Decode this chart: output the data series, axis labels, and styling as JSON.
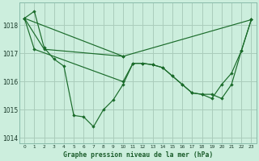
{
  "title": "Graphe pression niveau de la mer (hPa)",
  "background_color": "#cceedd",
  "grid_color": "#aaccbb",
  "line_color": "#1a6b2a",
  "marker_color": "#1a6b2a",
  "xlim": [
    -0.5,
    23.5
  ],
  "ylim": [
    1013.8,
    1018.8
  ],
  "yticks": [
    1014,
    1015,
    1016,
    1017,
    1018
  ],
  "xticks": [
    0,
    1,
    2,
    3,
    4,
    5,
    6,
    7,
    8,
    9,
    10,
    11,
    12,
    13,
    14,
    15,
    16,
    17,
    18,
    19,
    20,
    21,
    22,
    23
  ],
  "series0_x": [
    0,
    1,
    2,
    3,
    4,
    5,
    6,
    7,
    8,
    9,
    10,
    11,
    12,
    13,
    14,
    15,
    16,
    17,
    18,
    19,
    20,
    21,
    22,
    23
  ],
  "series0_y": [
    1018.25,
    1018.5,
    1017.2,
    1016.8,
    1016.55,
    1014.8,
    1014.75,
    1014.4,
    1015.0,
    1015.35,
    1015.9,
    1016.65,
    1016.65,
    1016.6,
    1016.5,
    1016.2,
    1015.9,
    1015.6,
    1015.55,
    1015.55,
    1015.4,
    1015.9,
    1017.1,
    1018.2
  ],
  "series1_x": [
    0,
    1,
    10,
    11,
    12,
    13,
    14,
    15,
    16,
    17,
    18,
    19,
    20,
    21,
    22,
    23
  ],
  "series1_y": [
    1018.25,
    1017.15,
    1016.0,
    1016.65,
    1016.65,
    1016.6,
    1016.5,
    1016.2,
    1015.9,
    1015.6,
    1015.55,
    1015.4,
    1015.9,
    1016.3,
    1017.1,
    1018.2
  ],
  "series2_x": [
    0,
    10,
    23
  ],
  "series2_y": [
    1018.25,
    1016.9,
    1018.2
  ],
  "series3_x": [
    0,
    2,
    10
  ],
  "series3_y": [
    1018.25,
    1017.15,
    1016.9
  ]
}
